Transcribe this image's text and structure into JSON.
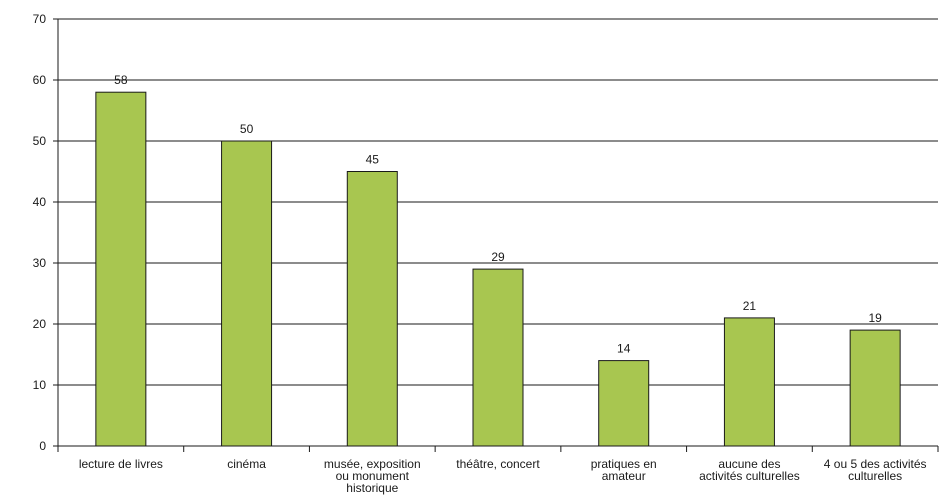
{
  "chart_data": {
    "type": "bar",
    "categories": [
      [
        "lecture de livres"
      ],
      [
        "cinéma"
      ],
      [
        "musée, exposition",
        "ou monument",
        "historique"
      ],
      [
        "théâtre, concert"
      ],
      [
        "pratiques en",
        "amateur"
      ],
      [
        "aucune des",
        "activités culturelles"
      ],
      [
        "4 ou 5 des activités",
        "culturelles"
      ]
    ],
    "values": [
      58,
      50,
      45,
      29,
      14,
      21,
      19
    ],
    "ylim": [
      0,
      70
    ],
    "yticks": [
      0,
      10,
      20,
      30,
      40,
      50,
      60,
      70
    ],
    "grid": true,
    "title": "",
    "xlabel": "",
    "ylabel": ""
  },
  "colors": {
    "bar_fill": "#a8c650",
    "bar_stroke": "#1a1a1a",
    "grid": "#1a1a1a",
    "axis": "#1a1a1a"
  }
}
